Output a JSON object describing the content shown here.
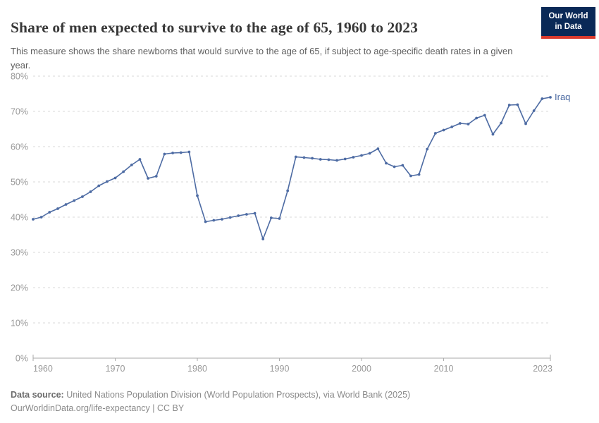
{
  "header": {
    "title": "Share of men expected to survive to the age of 65, 1960 to 2023",
    "subtitle": "This measure shows the share newborns that would survive to the age of 65, if subject to age-specific death rates in a given year.",
    "logo": {
      "line1": "Our World",
      "line2": "in Data"
    }
  },
  "chart_data": {
    "type": "line",
    "title": "Share of men expected to survive to the age of 65, 1960 to 2023",
    "xlabel": "",
    "ylabel": "",
    "ylim": [
      0,
      80
    ],
    "ytick_step": 10,
    "ytick_suffix": "%",
    "xticks": [
      1960,
      1970,
      1980,
      1990,
      2000,
      2010,
      2023
    ],
    "grid": true,
    "legend_position": "end-of-line",
    "series": [
      {
        "name": "Iraq",
        "color": "#4d6ba3",
        "x": [
          1960,
          1961,
          1962,
          1963,
          1964,
          1965,
          1966,
          1967,
          1968,
          1969,
          1970,
          1971,
          1972,
          1973,
          1974,
          1975,
          1976,
          1977,
          1978,
          1979,
          1980,
          1981,
          1982,
          1983,
          1984,
          1985,
          1986,
          1987,
          1988,
          1989,
          1990,
          1991,
          1992,
          1993,
          1994,
          1995,
          1996,
          1997,
          1998,
          1999,
          2000,
          2001,
          2002,
          2003,
          2004,
          2005,
          2006,
          2007,
          2008,
          2009,
          2010,
          2011,
          2012,
          2013,
          2014,
          2015,
          2016,
          2017,
          2018,
          2019,
          2020,
          2021,
          2022,
          2023
        ],
        "values": [
          39.4,
          40.0,
          41.4,
          42.4,
          43.6,
          44.7,
          45.8,
          47.2,
          48.9,
          50.1,
          51.1,
          52.9,
          54.8,
          56.4,
          51.0,
          51.6,
          57.9,
          58.2,
          58.3,
          58.5,
          46.1,
          38.7,
          39.1,
          39.4,
          39.9,
          40.4,
          40.8,
          41.1,
          33.8,
          39.8,
          39.6,
          47.5,
          57.1,
          56.9,
          56.7,
          56.4,
          56.3,
          56.1,
          56.5,
          57.0,
          57.5,
          58.1,
          59.4,
          55.3,
          54.3,
          54.7,
          51.7,
          52.1,
          59.3,
          63.8,
          64.7,
          65.6,
          66.6,
          66.4,
          68.1,
          68.9,
          63.5,
          66.7,
          71.8,
          71.9,
          66.5,
          70.2,
          73.6,
          74.0
        ]
      }
    ]
  },
  "footer": {
    "source_label": "Data source:",
    "source_text": " United Nations Population Division (World Population Prospects), via World Bank (2025)",
    "link_line": "OurWorldinData.org/life-expectancy | CC BY"
  },
  "colors": {
    "line_blue": "#4d6ba3",
    "logo_navy": "#0a2957",
    "logo_red": "#d93a2d",
    "gridline": "#dadada",
    "axis_line": "#aaaaaa",
    "tick_label": "#999999"
  }
}
